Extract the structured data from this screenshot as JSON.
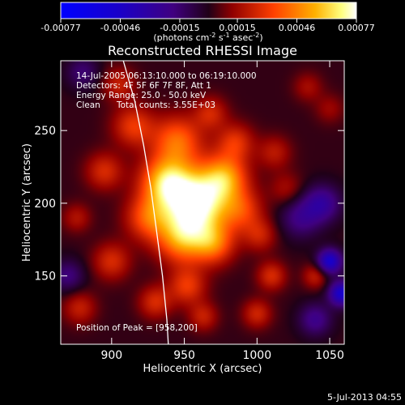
{
  "colorbar": {
    "tick_labels": [
      "-0.00077",
      "-0.00046",
      "-0.00015",
      "0.00015",
      "0.00046",
      "0.00077"
    ],
    "tick_values": [
      -0.00077,
      -0.00046,
      -0.00015,
      0.00015,
      0.00046,
      0.00077
    ],
    "range": [
      -0.00077,
      0.00077
    ],
    "units_prefix": "(photons cm",
    "units_exp1": "-2",
    "units_mid": " s",
    "units_exp2": "-1",
    "units_mid2": " asec",
    "units_exp3": "-2",
    "units_suffix": ")"
  },
  "info": {
    "time_range": "14-Jul-2005 06:13:10.000 to 06:19:10.000",
    "detectors": "Detectors: 4F 5F 6F 7F 8F, Att 1",
    "energy": "Energy Range: 25.0 - 50.0 keV",
    "method": "Clean",
    "counts": "Total counts: 3.55E+03",
    "peak": "Position of Peak = [958,200]"
  },
  "footer": {
    "timestamp": "5-Jul-2013 04:55"
  },
  "chart_data": {
    "type": "heatmap",
    "title": "Reconstructed RHESSI Image",
    "xlabel": "Heliocentric X (arcsec)",
    "ylabel": "Heliocentric Y (arcsec)",
    "xlim": [
      865,
      1060
    ],
    "ylim": [
      103,
      298
    ],
    "x_ticks": [
      900,
      950,
      1000,
      1050
    ],
    "y_ticks": [
      150,
      200,
      250
    ],
    "x_tick_labels": [
      "900",
      "950",
      "1000",
      "1050"
    ],
    "y_tick_labels": [
      "150",
      "200",
      "250"
    ],
    "peak": {
      "x": 958,
      "y": 200
    },
    "limb_curve": [
      [
        908,
        298
      ],
      [
        916,
        270
      ],
      [
        922,
        240
      ],
      [
        927,
        210
      ],
      [
        931,
        180
      ],
      [
        935,
        150
      ],
      [
        938,
        120
      ],
      [
        939,
        103
      ]
    ],
    "blobs": [
      {
        "x": 958,
        "y": 200,
        "amp": 0.00077,
        "sigma": 16
      },
      {
        "x": 937,
        "y": 215,
        "amp": 0.0005,
        "sigma": 12
      },
      {
        "x": 978,
        "y": 218,
        "amp": 0.00042,
        "sigma": 11
      },
      {
        "x": 948,
        "y": 175,
        "amp": 0.0004,
        "sigma": 12
      },
      {
        "x": 970,
        "y": 172,
        "amp": 0.00035,
        "sigma": 10
      },
      {
        "x": 925,
        "y": 190,
        "amp": 0.00032,
        "sigma": 11
      },
      {
        "x": 945,
        "y": 243,
        "amp": 0.00038,
        "sigma": 12
      },
      {
        "x": 915,
        "y": 253,
        "amp": 0.00028,
        "sigma": 10
      },
      {
        "x": 985,
        "y": 242,
        "amp": 0.00026,
        "sigma": 9
      },
      {
        "x": 895,
        "y": 222,
        "amp": 0.00024,
        "sigma": 9
      },
      {
        "x": 900,
        "y": 160,
        "amp": 0.00024,
        "sigma": 9
      },
      {
        "x": 990,
        "y": 195,
        "amp": 0.00025,
        "sigma": 10
      },
      {
        "x": 1002,
        "y": 178,
        "amp": 0.0002,
        "sigma": 8
      },
      {
        "x": 1012,
        "y": 235,
        "amp": 0.00018,
        "sigma": 8
      },
      {
        "x": 1020,
        "y": 210,
        "amp": 0.00014,
        "sigma": 8
      },
      {
        "x": 1010,
        "y": 150,
        "amp": 0.00024,
        "sigma": 7
      },
      {
        "x": 1040,
        "y": 150,
        "amp": 0.0002,
        "sigma": 6
      },
      {
        "x": 952,
        "y": 143,
        "amp": 0.00028,
        "sigma": 9
      },
      {
        "x": 930,
        "y": 132,
        "amp": 0.00024,
        "sigma": 8
      },
      {
        "x": 963,
        "y": 122,
        "amp": 0.0002,
        "sigma": 7
      },
      {
        "x": 1000,
        "y": 124,
        "amp": 0.00022,
        "sigma": 7
      },
      {
        "x": 878,
        "y": 128,
        "amp": 0.0002,
        "sigma": 8
      },
      {
        "x": 876,
        "y": 190,
        "amp": 0.00016,
        "sigma": 7
      },
      {
        "x": 1050,
        "y": 265,
        "amp": 0.00012,
        "sigma": 7
      },
      {
        "x": 1035,
        "y": 280,
        "amp": 0.00014,
        "sigma": 7
      },
      {
        "x": 968,
        "y": 262,
        "amp": 0.00022,
        "sigma": 8
      },
      {
        "x": 905,
        "y": 282,
        "amp": 0.0002,
        "sigma": 8
      },
      {
        "x": 1045,
        "y": 200,
        "amp": -0.00028,
        "sigma": 9
      },
      {
        "x": 1050,
        "y": 160,
        "amp": -0.0005,
        "sigma": 6
      },
      {
        "x": 1058,
        "y": 138,
        "amp": -0.0005,
        "sigma": 6
      },
      {
        "x": 1030,
        "y": 190,
        "amp": -0.00022,
        "sigma": 10
      },
      {
        "x": 870,
        "y": 150,
        "amp": -0.0002,
        "sigma": 8
      },
      {
        "x": 1040,
        "y": 120,
        "amp": -0.00024,
        "sigma": 8
      },
      {
        "x": 880,
        "y": 290,
        "amp": -0.00018,
        "sigma": 8
      }
    ]
  }
}
